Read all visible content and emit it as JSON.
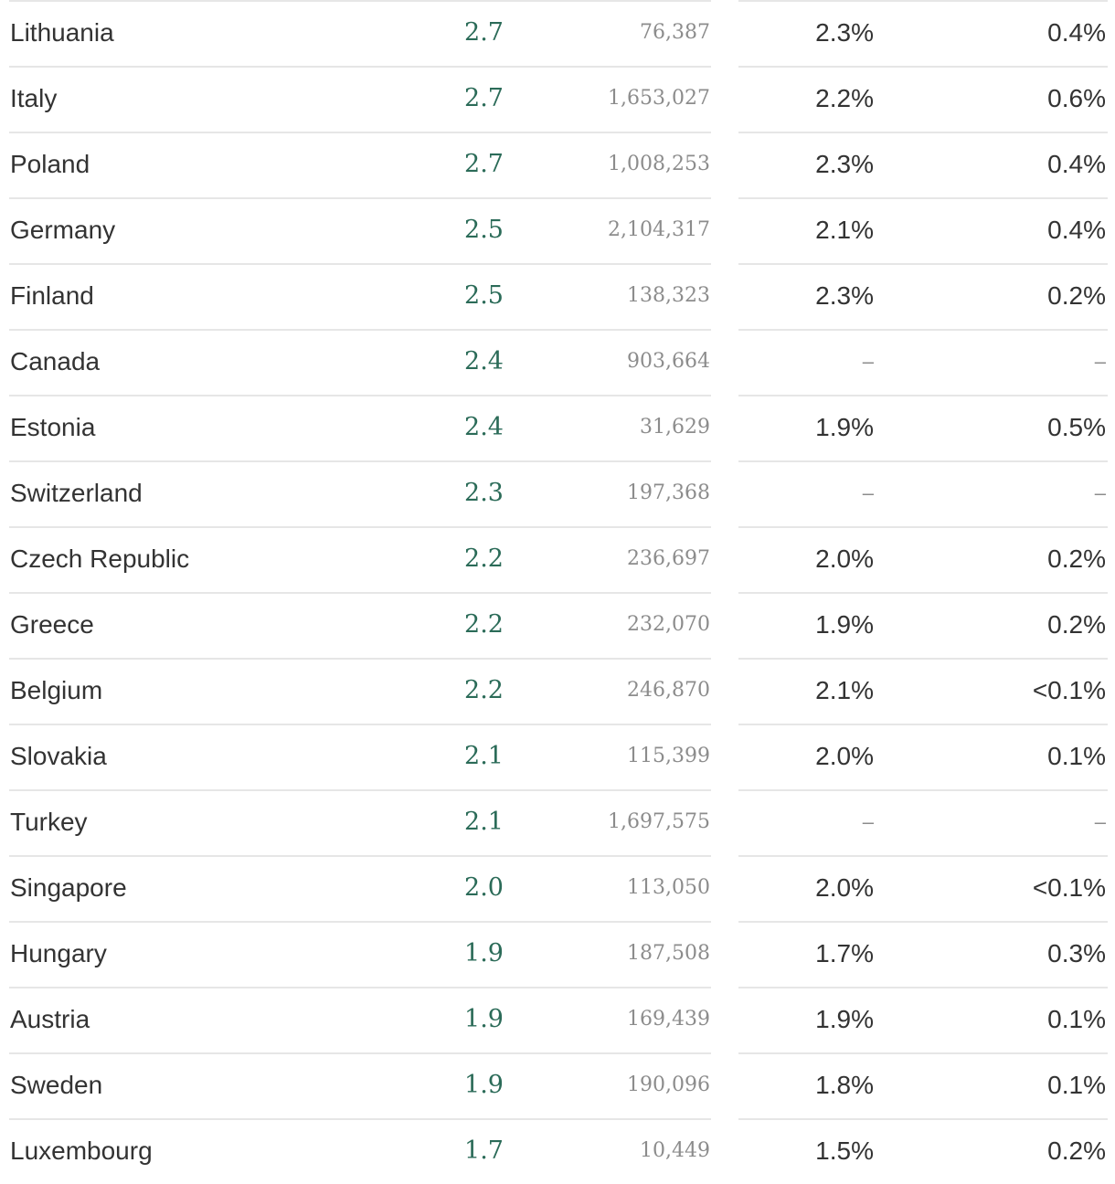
{
  "rows": [
    {
      "country": "Lithuania",
      "rate": "2.7",
      "cases": "76,387",
      "pct1": "2.3%",
      "pct2": "0.4%"
    },
    {
      "country": "Italy",
      "rate": "2.7",
      "cases": "1,653,027",
      "pct1": "2.2%",
      "pct2": "0.6%"
    },
    {
      "country": "Poland",
      "rate": "2.7",
      "cases": "1,008,253",
      "pct1": "2.3%",
      "pct2": "0.4%"
    },
    {
      "country": "Germany",
      "rate": "2.5",
      "cases": "2,104,317",
      "pct1": "2.1%",
      "pct2": "0.4%"
    },
    {
      "country": "Finland",
      "rate": "2.5",
      "cases": "138,323",
      "pct1": "2.3%",
      "pct2": "0.2%"
    },
    {
      "country": "Canada",
      "rate": "2.4",
      "cases": "903,664",
      "pct1": "–",
      "pct2": "–"
    },
    {
      "country": "Estonia",
      "rate": "2.4",
      "cases": "31,629",
      "pct1": "1.9%",
      "pct2": "0.5%"
    },
    {
      "country": "Switzerland",
      "rate": "2.3",
      "cases": "197,368",
      "pct1": "–",
      "pct2": "–"
    },
    {
      "country": "Czech Republic",
      "rate": "2.2",
      "cases": "236,697",
      "pct1": "2.0%",
      "pct2": "0.2%"
    },
    {
      "country": "Greece",
      "rate": "2.2",
      "cases": "232,070",
      "pct1": "1.9%",
      "pct2": "0.2%"
    },
    {
      "country": "Belgium",
      "rate": "2.2",
      "cases": "246,870",
      "pct1": "2.1%",
      "pct2": "<0.1%"
    },
    {
      "country": "Slovakia",
      "rate": "2.1",
      "cases": "115,399",
      "pct1": "2.0%",
      "pct2": "0.1%"
    },
    {
      "country": "Turkey",
      "rate": "2.1",
      "cases": "1,697,575",
      "pct1": "–",
      "pct2": "–"
    },
    {
      "country": "Singapore",
      "rate": "2.0",
      "cases": "113,050",
      "pct1": "2.0%",
      "pct2": "<0.1%"
    },
    {
      "country": "Hungary",
      "rate": "1.9",
      "cases": "187,508",
      "pct1": "1.7%",
      "pct2": "0.3%"
    },
    {
      "country": "Austria",
      "rate": "1.9",
      "cases": "169,439",
      "pct1": "1.9%",
      "pct2": "0.1%"
    },
    {
      "country": "Sweden",
      "rate": "1.9",
      "cases": "190,096",
      "pct1": "1.8%",
      "pct2": "0.1%"
    },
    {
      "country": "Luxembourg",
      "rate": "1.7",
      "cases": "10,449",
      "pct1": "1.5%",
      "pct2": "0.2%"
    }
  ]
}
